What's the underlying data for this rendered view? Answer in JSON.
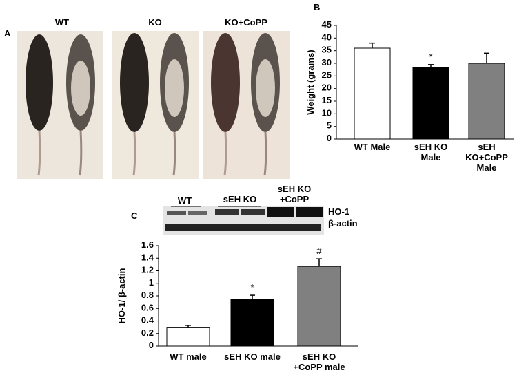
{
  "photo_panel": {
    "panel": "A",
    "labels": [
      "WT",
      "KO",
      "KO+CoPP"
    ]
  },
  "blot": {
    "panel": "C",
    "lanes": [
      "WT",
      "sEH KO",
      "sEH KO\n+CoPP"
    ],
    "bands": [
      "HO-1",
      "β-actin"
    ]
  },
  "chart_data": [
    {
      "type": "bar",
      "panel": "B",
      "y_label": "Weight (grams)",
      "categories": [
        "WT Male",
        "sEH  KO\nMale",
        "sEH\nKO+CoPP\nMale"
      ],
      "values": [
        36,
        28.5,
        30
      ],
      "errors": [
        2,
        1,
        4
      ],
      "colors": [
        "#ffffff",
        "#000000",
        "#808080"
      ],
      "annotations": [
        null,
        "*",
        null
      ],
      "ylim": [
        0,
        45
      ],
      "yticks": [
        0,
        5,
        10,
        15,
        20,
        25,
        30,
        35,
        40,
        45
      ]
    },
    {
      "type": "bar",
      "y_label": "HO-1/ β-actin",
      "categories": [
        "WT male",
        "sEH KO male",
        "sEH KO\n+CoPP male"
      ],
      "values": [
        0.3,
        0.74,
        1.27
      ],
      "errors": [
        0.03,
        0.07,
        0.12
      ],
      "colors": [
        "#ffffff",
        "#000000",
        "#808080"
      ],
      "annotations": [
        null,
        "*",
        "#"
      ],
      "ylim": [
        0,
        1.6
      ],
      "yticks": [
        0,
        0.2,
        0.4,
        0.6,
        0.8,
        1,
        1.2,
        1.4,
        1.6
      ]
    }
  ]
}
